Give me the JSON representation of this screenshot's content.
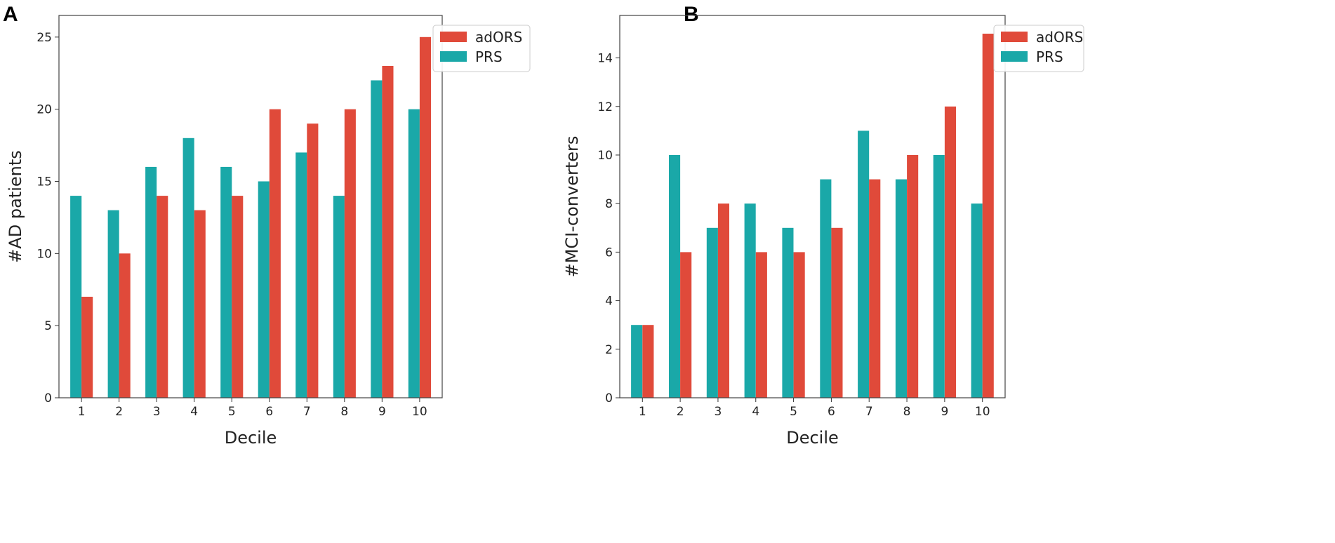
{
  "colors": {
    "adORS": "#e04a3a",
    "PRS": "#1aa8a8",
    "frame": "#444444",
    "legend_border": "#cccccc"
  },
  "chart_data": [
    {
      "panel": "A",
      "type": "bar",
      "xlabel": "Decile",
      "ylabel": "#AD patients",
      "categories": [
        "1",
        "2",
        "3",
        "4",
        "5",
        "6",
        "7",
        "8",
        "9",
        "10"
      ],
      "series": [
        {
          "name": "PRS",
          "values": [
            14,
            13,
            16,
            18,
            16,
            15,
            17,
            14,
            22,
            20
          ]
        },
        {
          "name": "adORS",
          "values": [
            7,
            10,
            14,
            13,
            14,
            20,
            19,
            20,
            23,
            25
          ]
        }
      ],
      "ylim": [
        0,
        26.5
      ],
      "yticks": [
        0,
        5,
        10,
        15,
        20,
        25
      ],
      "legend": {
        "position": "top-right-outside",
        "entries": [
          "adORS",
          "PRS"
        ]
      }
    },
    {
      "panel": "B",
      "type": "bar",
      "xlabel": "Decile",
      "ylabel": "#MCI-converters",
      "categories": [
        "1",
        "2",
        "3",
        "4",
        "5",
        "6",
        "7",
        "8",
        "9",
        "10"
      ],
      "series": [
        {
          "name": "PRS",
          "values": [
            3,
            10,
            7,
            8,
            7,
            9,
            11,
            9,
            10,
            8
          ]
        },
        {
          "name": "adORS",
          "values": [
            3,
            6,
            8,
            6,
            6,
            7,
            9,
            10,
            12,
            15
          ]
        }
      ],
      "ylim": [
        0,
        15.75
      ],
      "yticks": [
        0,
        2,
        4,
        6,
        8,
        10,
        12,
        14
      ],
      "legend": {
        "position": "top-right-outside",
        "entries": [
          "adORS",
          "PRS"
        ]
      }
    }
  ]
}
